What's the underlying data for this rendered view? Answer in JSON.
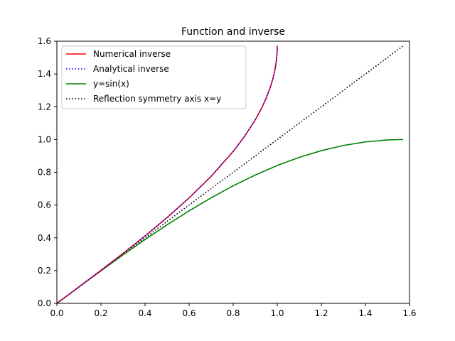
{
  "chart_data": {
    "type": "line",
    "title": "Function and inverse",
    "xlabel": "",
    "ylabel": "",
    "xlim": [
      0.0,
      1.6
    ],
    "ylim": [
      0.0,
      1.6
    ],
    "x_ticks": [
      "0.0",
      "0.2",
      "0.4",
      "0.6",
      "0.8",
      "1.0",
      "1.2",
      "1.4",
      "1.6"
    ],
    "y_ticks": [
      "0.0",
      "0.2",
      "0.4",
      "0.6",
      "0.8",
      "1.0",
      "1.2",
      "1.4",
      "1.6"
    ],
    "grid": false,
    "legend_position": "top-left",
    "series": [
      {
        "name": "Numerical inverse",
        "color": "#ff0000",
        "style": "solid",
        "points": [
          [
            0.0,
            0.0
          ],
          [
            0.1,
            0.1002
          ],
          [
            0.2,
            0.2014
          ],
          [
            0.3,
            0.3047
          ],
          [
            0.4,
            0.4115
          ],
          [
            0.5,
            0.5236
          ],
          [
            0.6,
            0.6435
          ],
          [
            0.7,
            0.7754
          ],
          [
            0.8,
            0.9273
          ],
          [
            0.85,
            1.016
          ],
          [
            0.9,
            1.1198
          ],
          [
            0.93,
            1.1942
          ],
          [
            0.95,
            1.2532
          ],
          [
            0.97,
            1.3252
          ],
          [
            0.98,
            1.3705
          ],
          [
            0.99,
            1.4293
          ],
          [
            0.995,
            1.4708
          ],
          [
            0.999,
            1.526
          ],
          [
            1.0,
            1.5708
          ]
        ]
      },
      {
        "name": "Analytical inverse",
        "color": "#0000ff",
        "style": "dotted",
        "points": [
          [
            0.0,
            0.0
          ],
          [
            0.1,
            0.1002
          ],
          [
            0.2,
            0.2014
          ],
          [
            0.3,
            0.3047
          ],
          [
            0.4,
            0.4115
          ],
          [
            0.5,
            0.5236
          ],
          [
            0.6,
            0.6435
          ],
          [
            0.7,
            0.7754
          ],
          [
            0.8,
            0.9273
          ],
          [
            0.85,
            1.016
          ],
          [
            0.9,
            1.1198
          ],
          [
            0.93,
            1.1942
          ],
          [
            0.95,
            1.2532
          ],
          [
            0.97,
            1.3252
          ],
          [
            0.98,
            1.3705
          ],
          [
            0.99,
            1.4293
          ],
          [
            0.995,
            1.4708
          ],
          [
            0.999,
            1.526
          ],
          [
            1.0,
            1.5708
          ]
        ]
      },
      {
        "name": "y=sin(x)",
        "color": "#008000",
        "style": "solid",
        "points": [
          [
            0.0,
            0.0
          ],
          [
            0.1,
            0.0998
          ],
          [
            0.2,
            0.1987
          ],
          [
            0.3,
            0.2955
          ],
          [
            0.4,
            0.3894
          ],
          [
            0.5,
            0.4794
          ],
          [
            0.6,
            0.5646
          ],
          [
            0.7,
            0.6442
          ],
          [
            0.8,
            0.7174
          ],
          [
            0.9,
            0.7833
          ],
          [
            1.0,
            0.8415
          ],
          [
            1.1,
            0.8912
          ],
          [
            1.2,
            0.932
          ],
          [
            1.3,
            0.9636
          ],
          [
            1.4,
            0.9854
          ],
          [
            1.5,
            0.9975
          ],
          [
            1.5708,
            1.0
          ]
        ]
      },
      {
        "name": "Reflection symmetry axis x=y",
        "color": "#000000",
        "style": "dotted",
        "points": [
          [
            0.0,
            0.0
          ],
          [
            1.5708,
            1.5708
          ]
        ]
      }
    ]
  }
}
